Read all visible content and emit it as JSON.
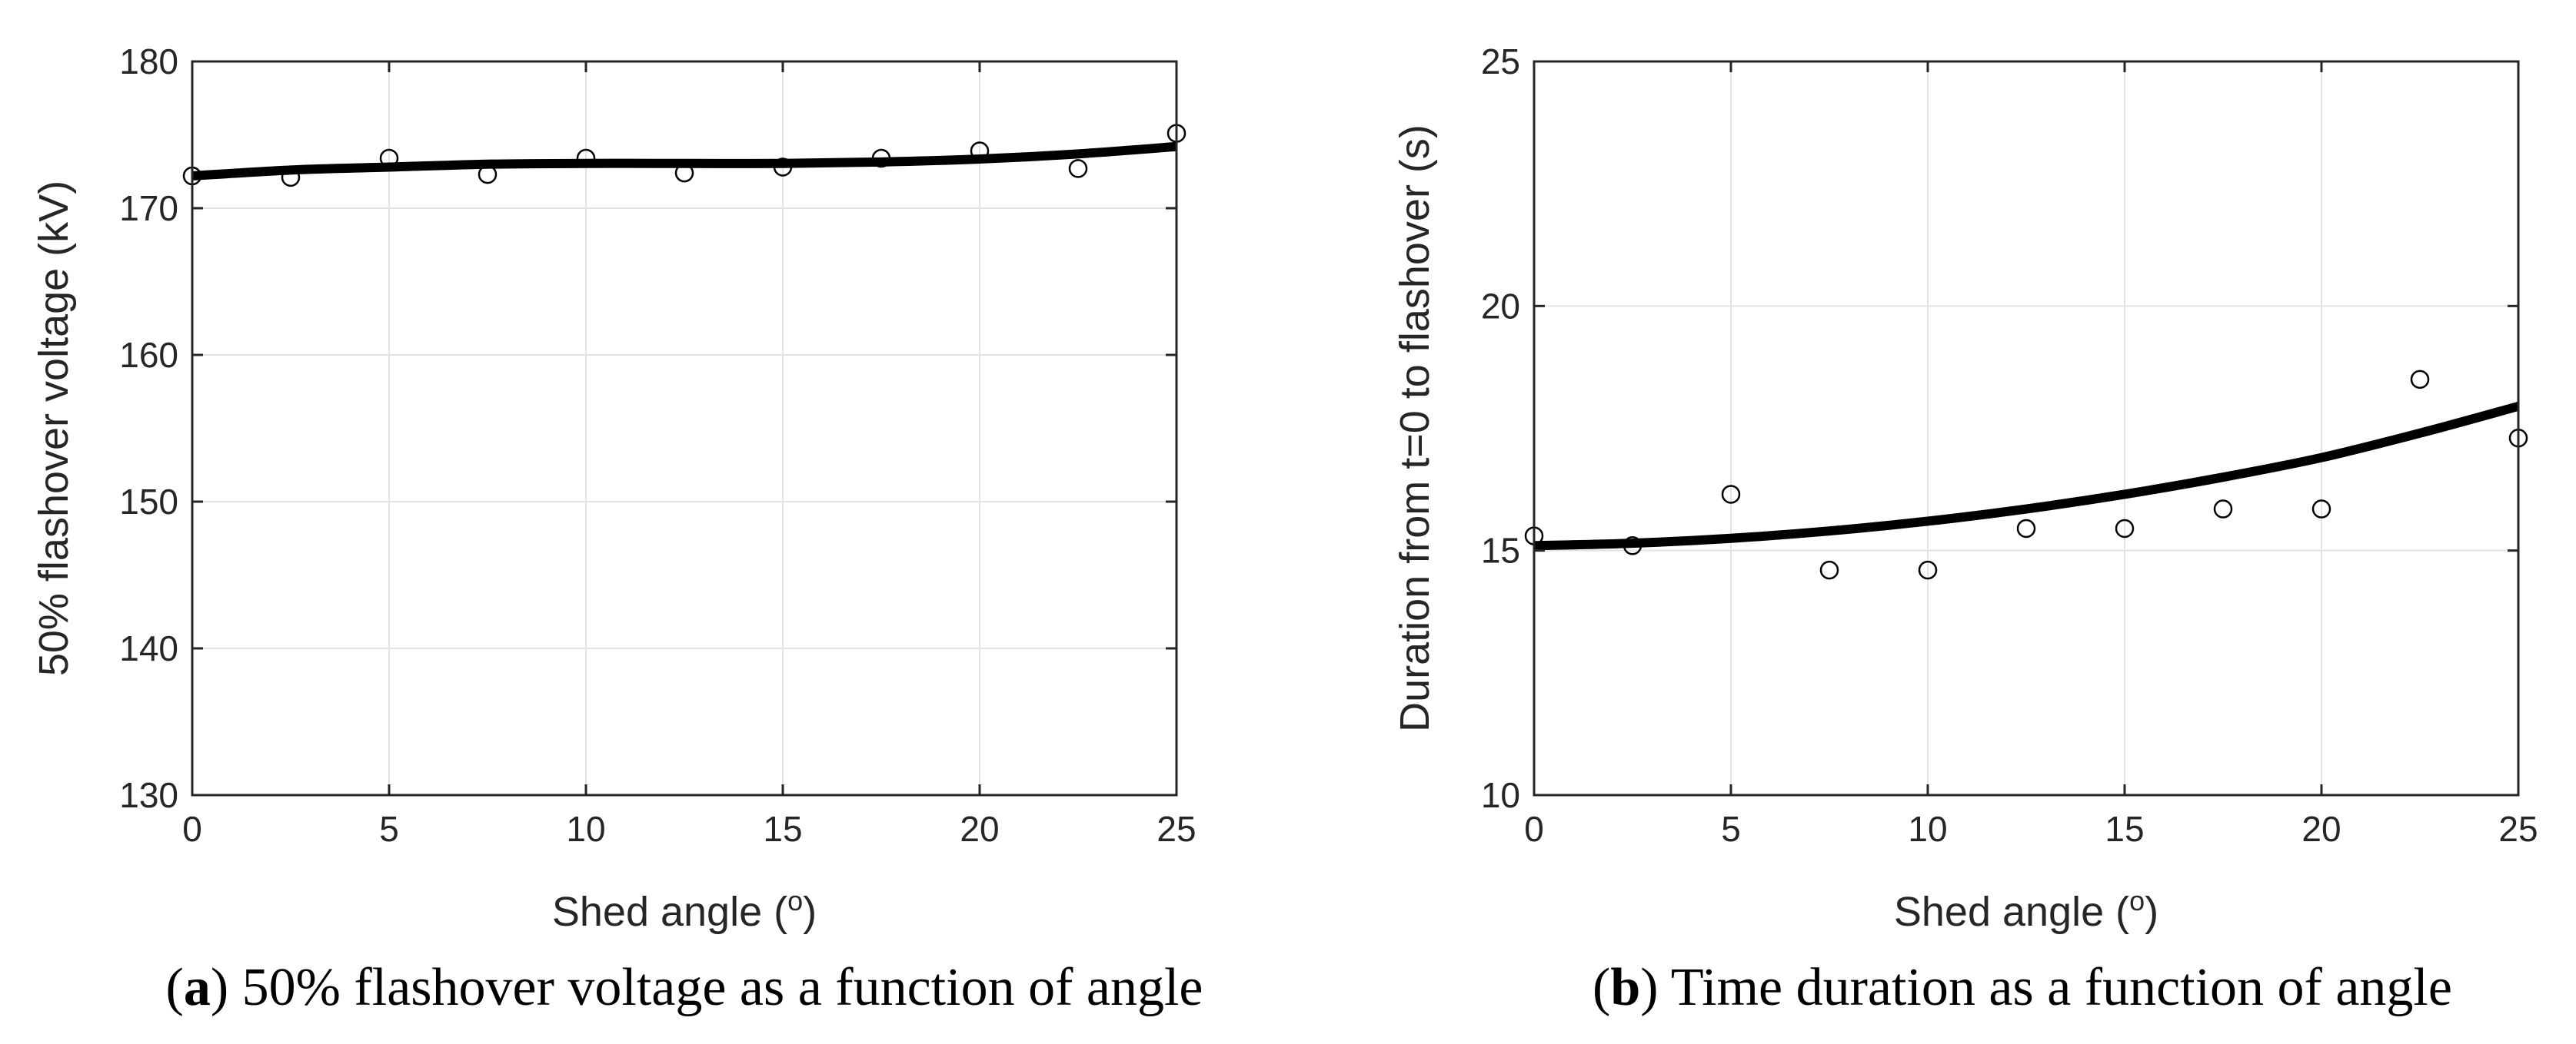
{
  "chart_data": [
    {
      "type": "scatter",
      "panel_id": "a",
      "xlabel_main": "Shed angle (",
      "xlabel_sup": "o",
      "xlabel_end": ")",
      "ylabel": "50% flashover voltage (kV)",
      "xlim": [
        0,
        25
      ],
      "ylim": [
        130,
        180
      ],
      "xticks": [
        0,
        5,
        10,
        15,
        20,
        25
      ],
      "yticks": [
        130,
        140,
        150,
        160,
        170,
        180
      ],
      "grid": true,
      "series": [
        {
          "name": "measured",
          "kind": "markers",
          "x": [
            0,
            2.5,
            5,
            7.5,
            10,
            12.5,
            15,
            17.5,
            20,
            22.5,
            25
          ],
          "y": [
            172.2,
            172.1,
            173.4,
            172.3,
            173.4,
            172.4,
            172.8,
            173.4,
            173.9,
            172.7,
            175.1
          ]
        },
        {
          "name": "fit",
          "kind": "line",
          "x": [
            0,
            2.5,
            5,
            7.5,
            10,
            12.5,
            15,
            17.5,
            20,
            22.5,
            25
          ],
          "y": [
            172.2,
            172.6,
            172.8,
            173.0,
            173.05,
            173.05,
            173.05,
            173.15,
            173.35,
            173.7,
            174.2
          ]
        }
      ],
      "caption_label": "a",
      "caption_text": " 50% flashover voltage as a function of angle"
    },
    {
      "type": "scatter",
      "panel_id": "b",
      "xlabel_main": "Shed angle (",
      "xlabel_sup": "o",
      "xlabel_end": ")",
      "ylabel": "Duration from t=0 to flashover (s)",
      "xlim": [
        0,
        25
      ],
      "ylim": [
        10,
        25
      ],
      "xticks": [
        0,
        5,
        10,
        15,
        20,
        25
      ],
      "yticks": [
        10,
        15,
        20,
        25
      ],
      "grid": true,
      "series": [
        {
          "name": "measured",
          "kind": "markers",
          "x": [
            0,
            2.5,
            5,
            7.5,
            10,
            12.5,
            15,
            17.5,
            20,
            22.5,
            25
          ],
          "y": [
            15.3,
            15.1,
            16.15,
            14.6,
            14.6,
            15.45,
            15.45,
            15.85,
            15.85,
            18.5,
            17.3
          ]
        },
        {
          "name": "fit",
          "kind": "line",
          "x": [
            0,
            2.5,
            5,
            7.5,
            10,
            12.5,
            15,
            17.5,
            20,
            22.5,
            25
          ],
          "y": [
            15.1,
            15.15,
            15.25,
            15.4,
            15.6,
            15.85,
            16.15,
            16.5,
            16.9,
            17.4,
            17.95
          ]
        }
      ],
      "caption_label": "b",
      "caption_text": " Time duration as a function of angle"
    }
  ]
}
